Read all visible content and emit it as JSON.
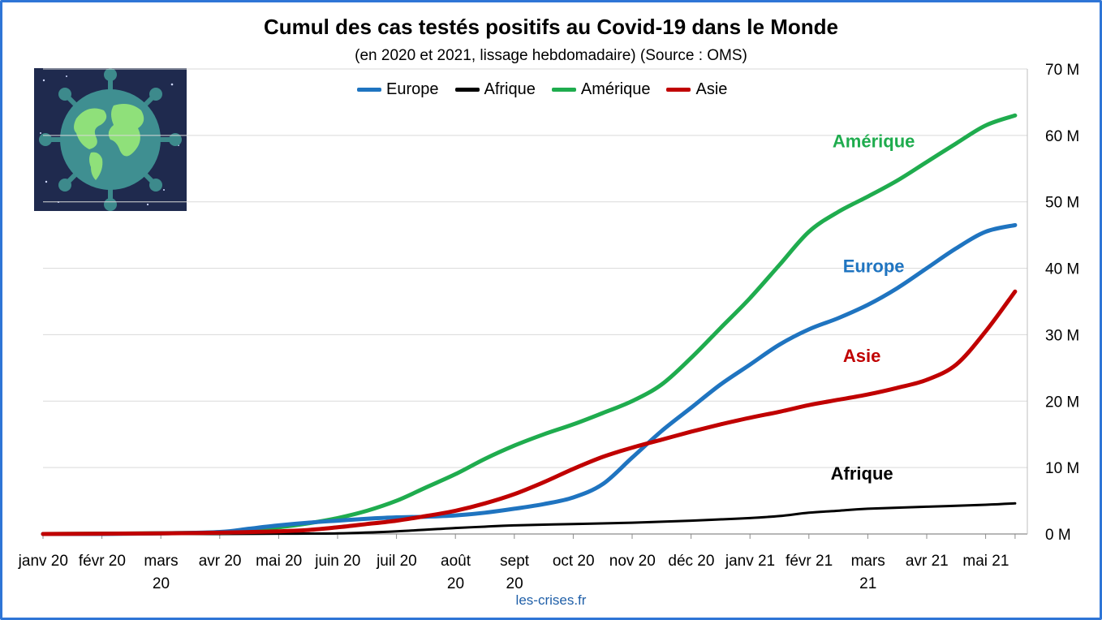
{
  "chart_data": {
    "type": "line",
    "title": "Cumul des cas testés positifs au Covid-19 dans le Monde",
    "subtitle": "(en 2020 et 2021, lissage hebdomadaire) (Source : OMS)",
    "source_label": "les-crises.fr",
    "y_axis_position": "right",
    "ylim": [
      0,
      70
    ],
    "y_ticks": [
      "0 M",
      "10 M",
      "20 M",
      "30 M",
      "40 M",
      "50 M",
      "60 M",
      "70 M"
    ],
    "grid": true,
    "legend_placement": "top-center",
    "x_ticks": [
      {
        "lines": [
          "janv 20"
        ]
      },
      {
        "lines": [
          "févr 20"
        ]
      },
      {
        "lines": [
          "mars",
          "20"
        ]
      },
      {
        "lines": [
          "avr 20"
        ]
      },
      {
        "lines": [
          "mai 20"
        ]
      },
      {
        "lines": [
          "juin 20"
        ]
      },
      {
        "lines": [
          "juil 20"
        ]
      },
      {
        "lines": [
          "août",
          "20"
        ]
      },
      {
        "lines": [
          "sept",
          "20"
        ]
      },
      {
        "lines": [
          "oct 20"
        ]
      },
      {
        "lines": [
          "nov 20"
        ]
      },
      {
        "lines": [
          "déc 20"
        ]
      },
      {
        "lines": [
          "janv 21"
        ]
      },
      {
        "lines": [
          "févr 21"
        ]
      },
      {
        "lines": [
          "mars",
          "21"
        ]
      },
      {
        "lines": [
          "avr 21"
        ]
      },
      {
        "lines": [
          "mai 21"
        ]
      }
    ],
    "x_max_month": 16.5,
    "series": [
      {
        "name": "Europe",
        "color": "#1f74c0",
        "label": "Europe",
        "x": [
          0,
          1,
          2,
          3,
          3.5,
          4,
          4.5,
          5,
          5.5,
          6,
          6.5,
          7,
          7.5,
          8,
          8.5,
          9,
          9.5,
          10,
          10.5,
          11,
          11.5,
          12,
          12.5,
          13,
          13.5,
          14,
          14.5,
          15,
          15.5,
          16,
          16.5
        ],
        "values": [
          0,
          0,
          0.1,
          0.3,
          0.8,
          1.3,
          1.7,
          2.0,
          2.3,
          2.5,
          2.6,
          2.8,
          3.2,
          3.8,
          4.5,
          5.5,
          7.5,
          11.5,
          15.5,
          19,
          22.5,
          25.5,
          28.5,
          30.8,
          32.5,
          34.5,
          37,
          40,
          43,
          45.5,
          46.5
        ]
      },
      {
        "name": "Afrique",
        "color": "#000000",
        "label": "Afrique",
        "x": [
          0,
          3,
          4,
          5,
          6,
          7,
          7.5,
          8,
          9,
          10,
          11,
          11.5,
          12,
          12.5,
          13,
          13.5,
          14,
          15,
          16,
          16.5
        ],
        "values": [
          0,
          0,
          0.05,
          0.1,
          0.4,
          0.9,
          1.1,
          1.3,
          1.5,
          1.7,
          2.0,
          2.2,
          2.4,
          2.7,
          3.2,
          3.5,
          3.8,
          4.1,
          4.4,
          4.6
        ]
      },
      {
        "name": "Amérique",
        "color": "#1fac4e",
        "label": "Amérique",
        "x": [
          0,
          3,
          3.5,
          4,
          4.5,
          5,
          5.5,
          6,
          6.5,
          7,
          7.5,
          8,
          8.5,
          9,
          9.5,
          10,
          10.5,
          11,
          11.5,
          12,
          12.5,
          13,
          13.5,
          14,
          14.5,
          15,
          15.5,
          16,
          16.5
        ],
        "values": [
          0,
          0.2,
          0.6,
          1.0,
          1.6,
          2.4,
          3.5,
          5.0,
          7.0,
          9.0,
          11.3,
          13.3,
          15.0,
          16.5,
          18.2,
          20.0,
          22.5,
          26.5,
          31.0,
          35.5,
          40.5,
          45.5,
          48.5,
          50.8,
          53.2,
          56.0,
          58.8,
          61.5,
          63.0
        ]
      },
      {
        "name": "Asie",
        "color": "#c00000",
        "label": "Asie",
        "x": [
          0,
          2,
          3,
          4,
          4.5,
          5,
          5.5,
          6,
          6.5,
          7,
          7.5,
          8,
          8.5,
          9,
          9.5,
          10,
          10.5,
          11,
          11.5,
          12,
          12.5,
          13,
          13.5,
          14,
          14.5,
          15,
          15.5,
          16,
          16.5
        ],
        "values": [
          0,
          0.1,
          0.2,
          0.4,
          0.6,
          1.0,
          1.5,
          2.0,
          2.7,
          3.5,
          4.6,
          6.0,
          7.8,
          9.8,
          11.6,
          13.0,
          14.2,
          15.4,
          16.5,
          17.5,
          18.4,
          19.4,
          20.2,
          21.0,
          22.0,
          23.2,
          25.5,
          30.5,
          36.5
        ]
      }
    ],
    "inline_labels": [
      {
        "text": "Amérique",
        "series": "Amérique",
        "x": 14.1,
        "y": 58.2
      },
      {
        "text": "Europe",
        "series": "Europe",
        "x": 14.1,
        "y": 39.4
      },
      {
        "text": "Asie",
        "series": "Asie",
        "x": 13.9,
        "y": 25.9
      },
      {
        "text": "Afrique",
        "series": "Afrique",
        "x": 13.9,
        "y": 8.2
      }
    ]
  },
  "image": {
    "icon": "globe-virus-icon"
  }
}
